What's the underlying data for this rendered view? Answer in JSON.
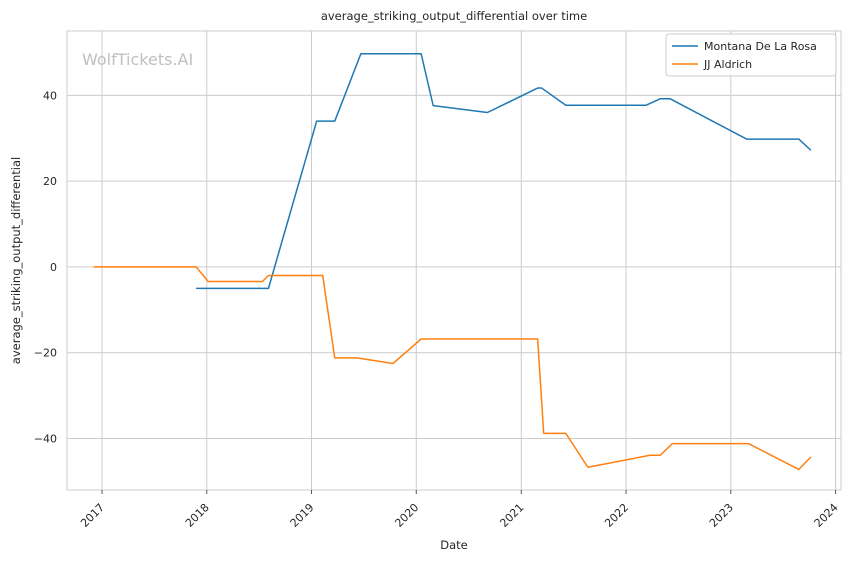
{
  "chart_data": {
    "type": "line",
    "title": "average_striking_output_differential over time",
    "xlabel": "Date",
    "ylabel": "average_striking_output_differential",
    "watermark": "WolfTickets.AI",
    "x_axis": "date",
    "xlim": [
      "2016-09-01",
      "2024-01-20"
    ],
    "ylim": [
      -52,
      55
    ],
    "x_ticks": [
      {
        "date": "2017-01-01",
        "label": "2017"
      },
      {
        "date": "2018-01-01",
        "label": "2018"
      },
      {
        "date": "2019-01-01",
        "label": "2019"
      },
      {
        "date": "2020-01-01",
        "label": "2020"
      },
      {
        "date": "2021-01-01",
        "label": "2021"
      },
      {
        "date": "2022-01-01",
        "label": "2022"
      },
      {
        "date": "2023-01-01",
        "label": "2023"
      },
      {
        "date": "2024-01-01",
        "label": "2024"
      }
    ],
    "y_ticks": [
      {
        "value": 40,
        "label": "40"
      },
      {
        "value": 20,
        "label": "20"
      },
      {
        "value": 0,
        "label": "0"
      },
      {
        "value": -20,
        "label": "−20"
      },
      {
        "value": -40,
        "label": "−40"
      }
    ],
    "grid": true,
    "legend_position": "top-right",
    "series": [
      {
        "name": "Montana De La Rosa",
        "color": "#1f77b4",
        "points": [
          {
            "x": "2017-11-25",
            "y": -5
          },
          {
            "x": "2018-08-04",
            "y": -5
          },
          {
            "x": "2019-01-19",
            "y": 34
          },
          {
            "x": "2019-03-23",
            "y": 34
          },
          {
            "x": "2019-06-22",
            "y": 49.7
          },
          {
            "x": "2020-01-18",
            "y": 49.7
          },
          {
            "x": "2020-02-29",
            "y": 37.6
          },
          {
            "x": "2020-09-05",
            "y": 36
          },
          {
            "x": "2021-02-27",
            "y": 41.7
          },
          {
            "x": "2021-03-13",
            "y": 41.7
          },
          {
            "x": "2021-06-05",
            "y": 37.7
          },
          {
            "x": "2022-03-12",
            "y": 37.7
          },
          {
            "x": "2022-04-30",
            "y": 39.2
          },
          {
            "x": "2022-06-04",
            "y": 39.2
          },
          {
            "x": "2023-02-25",
            "y": 29.8
          },
          {
            "x": "2023-08-26",
            "y": 29.8
          },
          {
            "x": "2023-10-07",
            "y": 27.2
          }
        ]
      },
      {
        "name": "JJ Aldrich",
        "color": "#ff7f0e",
        "points": [
          {
            "x": "2016-12-03",
            "y": 0
          },
          {
            "x": "2017-11-25",
            "y": 0
          },
          {
            "x": "2018-01-06",
            "y": -3.4
          },
          {
            "x": "2018-07-14",
            "y": -3.4
          },
          {
            "x": "2018-08-04",
            "y": -2
          },
          {
            "x": "2019-02-09",
            "y": -2
          },
          {
            "x": "2019-03-23",
            "y": -21.2
          },
          {
            "x": "2019-06-08",
            "y": -21.2
          },
          {
            "x": "2019-10-12",
            "y": -22.5
          },
          {
            "x": "2020-01-18",
            "y": -16.8
          },
          {
            "x": "2021-02-27",
            "y": -16.8
          },
          {
            "x": "2021-03-20",
            "y": -38.8
          },
          {
            "x": "2021-06-05",
            "y": -38.8
          },
          {
            "x": "2021-08-21",
            "y": -46.7
          },
          {
            "x": "2022-03-26",
            "y": -43.9
          },
          {
            "x": "2022-04-30",
            "y": -43.9
          },
          {
            "x": "2022-06-11",
            "y": -41.2
          },
          {
            "x": "2023-03-04",
            "y": -41.2
          },
          {
            "x": "2023-08-26",
            "y": -47.2
          },
          {
            "x": "2023-10-07",
            "y": -44.3
          }
        ]
      }
    ]
  }
}
